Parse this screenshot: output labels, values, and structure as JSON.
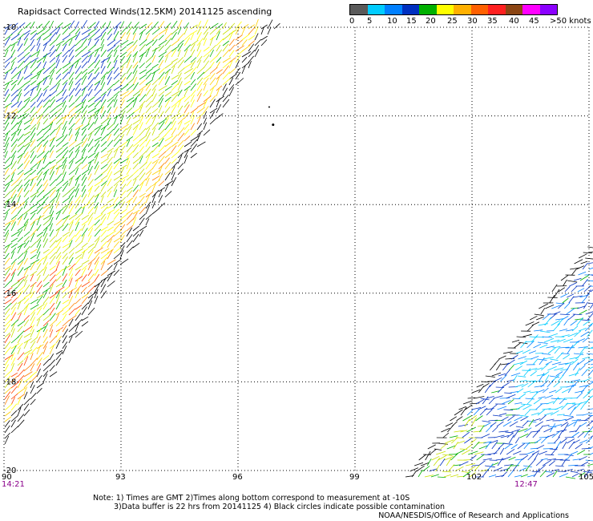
{
  "title": "Rapidsact Corrected Winds(12.5KM) 20141125 ascending",
  "colorbar": {
    "labels": [
      "0",
      "5",
      "10",
      "15",
      "20",
      "25",
      "30",
      "35",
      "40",
      "45",
      ">50 knots"
    ],
    "colors": [
      "#5a5a5a",
      "#00ccff",
      "#0080ff",
      "#0030c0",
      "#00b000",
      "#ffff00",
      "#ffb000",
      "#ff6000",
      "#ff2020",
      "#8b4513",
      "#ff00ff",
      "#8b00ff"
    ]
  },
  "map": {
    "lon_ticks": [
      "90",
      "93",
      "96",
      "99",
      "102",
      "105"
    ],
    "lat_ticks": [
      "-10",
      "-12",
      "-14",
      "-16",
      "-18",
      "-20"
    ],
    "lon_range": [
      90,
      105
    ],
    "lat_range": [
      -20,
      -10
    ],
    "time_left": "14:21",
    "time_right": "12:47"
  },
  "notes": {
    "line1": "Note: 1) Times are GMT 2)Times along bottom correspond to measurement at -10S",
    "line2": "3)Data buffer is 22 hrs from 20141125 4) Black circles indicate possible contamination"
  },
  "credit": "NOAA/NESDIS/Office of Research and Applications"
}
